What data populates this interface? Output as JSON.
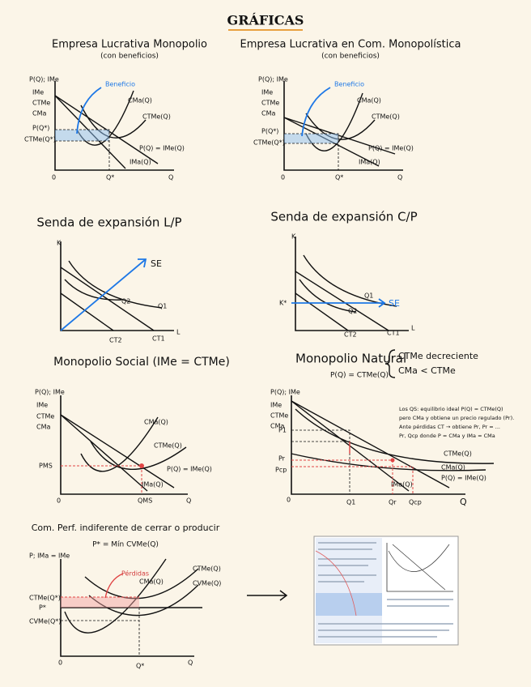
{
  "title": "GRÁFICAS",
  "panels": [
    {
      "title": "Empresa Lucrativa Monopolio",
      "subtitle": "(con beneficios)",
      "labels": [
        "P(Q); IMe",
        "IMe",
        "CTMe",
        "CMa",
        "P(Q*)",
        "CTMe(Q*)",
        "Beneficio",
        "CMa(Q)",
        "CTMe(Q)",
        "P(Q) = IMe(Q)",
        "IMa(Q)",
        "0",
        "Q*",
        "Q"
      ]
    },
    {
      "title": "Empresa Lucrativa en Com. Monopolística",
      "subtitle": "(con beneficios)",
      "labels": [
        "P(Q); IMe",
        "IMe",
        "CTMe",
        "CMa",
        "P(Q*)",
        "CTMe(Q*)",
        "Beneficio",
        "CMa(Q)",
        "CTMe(Q)",
        "P(Q) = IMe(Q)",
        "IMa(Q)",
        "0",
        "Q*",
        "Q"
      ]
    },
    {
      "title": "Senda de expansión L/P",
      "labels": [
        "K",
        "SE",
        "Q1",
        "Q2",
        "CT2",
        "CT1",
        "L"
      ]
    },
    {
      "title": "Senda de expansión C/P",
      "labels": [
        "K",
        "K*",
        "Q1",
        "Q2",
        "SE",
        "CT2",
        "CT1",
        "L"
      ]
    },
    {
      "title": "Monopolio Social (IMe = CTMe)",
      "labels": [
        "P(Q); IMe",
        "IMe",
        "CTMe",
        "CMa",
        "PMS",
        "CMa(Q)",
        "CTMe(Q)",
        "P(Q) = IMe(Q)",
        "IMa(Q)",
        "0",
        "QMS",
        "Q"
      ]
    },
    {
      "title": "Monopolio Natural",
      "subtitle": "P(Q) = CTMe(Q)",
      "conditions": [
        "CTMe decreciente",
        "CMa < CTMe"
      ],
      "notes": [
        "Los QS: equilibrio ideal P(Q) = CTMe(Q)",
        "pero CMa y obtiene un precio regulado (Pr).",
        "Ante pérdidas CT → obtiene Pr, Pr = ...",
        "Pr, Qcp donde P = CMa y IMa = CMa"
      ],
      "labels": [
        "P(Q); IMe",
        "IMe",
        "CTMe",
        "CMa",
        "P1",
        "Pr",
        "Pcp",
        "0",
        "Q1",
        "Qr",
        "Qcp",
        "Q",
        "CTMe(Q)",
        "CMa(Q)",
        "P(Q) = IMe(Q)",
        "IMa(Q)"
      ]
    },
    {
      "title": "Com. Perf. indiferente de cerrar o producir",
      "subtitle": "P* = Mín CVMe(Q)",
      "labels": [
        "P; IMa = IMe",
        "Pérdidas",
        "CTMe(Q)",
        "CVMe(Q)",
        "CMa(Q)",
        "CTMe(Q*)",
        "P*",
        "CVMe(Q*)",
        "0",
        "Q*",
        "Q"
      ]
    }
  ]
}
